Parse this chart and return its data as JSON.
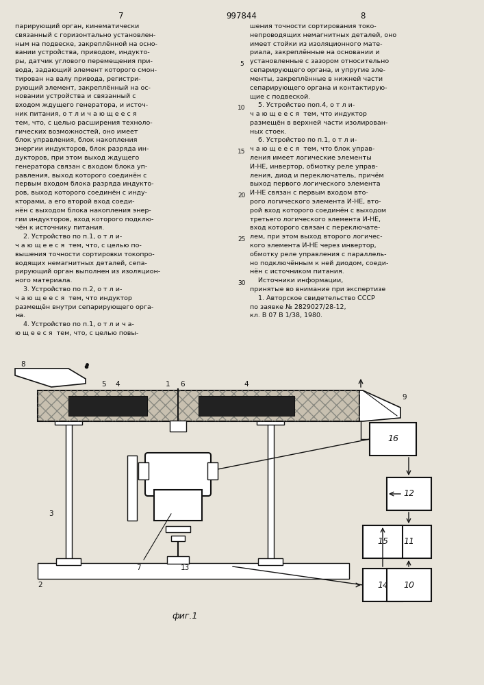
{
  "page_number_left": "7",
  "patent_number": "997844",
  "page_number_right": "8",
  "bg_color": "#e8e4da",
  "text_color": "#111111",
  "fig_caption": "фиг.1",
  "left_col_lines": [
    "парирующий орган, кинематически",
    "связанный с горизонтально установлен-",
    "ным на подвеске, закреплённой на осно-",
    "вании устройства, приводом, индукто-",
    "ры, датчик углового перемещения при-",
    "вода, задающий элемент которого смон-",
    "тирован на валу привода, регистри-",
    "рующий элемент, закреплённый на ос-",
    "новании устройства и связанный с",
    "входом ждущего генератора, и источ-",
    "ник питания, о т л и ч а ю щ е е с я",
    "тем, что, с целью расширения техноло-",
    "гических возможностей, оно имеет",
    "блок управления, блок накопления",
    "энергии индукторов, блок разряда ин-",
    "дукторов, при этом выход ждущего",
    "генератора связан с входом блока уп-",
    "равления, выход которого соединён с",
    "первым входом блока разряда индукто-",
    "ров, выход которого соединён с инду-",
    "кторами, а его второй вход соеди-",
    "нён с выходом блока накопления энер-",
    "гии индукторов, вход которого подклю-",
    "чён к источнику питания.",
    "    2. Устройство по п.1, о т л и-",
    "ч а ю щ е е с я  тем, что, с целью по-",
    "вышения точности сортировки токопро-",
    "водящих немагнитных деталей, сепа-",
    "рирующий орган выполнен из изоляцион-",
    "ного материала.",
    "    3. Устройство по п.2, о т л и-",
    "ч а ю щ е е с я  тем, что индуктор",
    "размещён внутри сепарирующего орга-",
    "на.",
    "    4. Устройство по п.1, о т л и ч а-",
    "ю щ е е с я  тем, что, с целью повы-"
  ],
  "right_col_lines": [
    "шения точности сортирования токо-",
    "непроводящих немагнитных деталей, оно",
    "имеет стойки из изоляционного мате-",
    "риала, закреплённые на основании и",
    "установленные с зазором относительно",
    "сепарирующего органа, и упругие эле-",
    "менты, закреплённые в нижней части",
    "сепарирующего органа и контактирую-",
    "щие с подвеской.",
    "    5. Устройство поп.4, о т л и-",
    "ч а ю щ е е с я  тем, что индуктор",
    "размещён в верхней части изолирован-",
    "ных стоек.",
    "    6. Устройство по п.1, о т л и-",
    "ч а ю щ е е с я  тем, что блок управ-",
    "ления имеет логические элементы",
    "И-НЕ, инвертор, обмотку реле управ-",
    "ления, диод и переключатель, причём",
    "выход первого логического элемента",
    "И-НЕ связан с первым входом вто-",
    "рого логического элемента И-НЕ, вто-",
    "рой вход которого соединён с выходом",
    "третьего логического элемента И-НЕ,",
    "вход которого связан с переключате-",
    "лем, при этом выход второго логичес-",
    "кого элемента И-НЕ через инвертор,",
    "обмотку реле управления с параллель-",
    "но подключённым к ней диодом, соеди-",
    "нён с источником питания.",
    "    Источники информации,",
    "принятые во внимание при экспертизе",
    "    1. Авторское свидетельство СССР",
    "по заявке № 2829027/28-12,",
    "кл. В 07 В 1/38, 1980."
  ],
  "line_numbers": [
    "5",
    "10",
    "15",
    "20",
    "25",
    "30"
  ],
  "line_number_rows": [
    5,
    10,
    15,
    20,
    25,
    30
  ]
}
